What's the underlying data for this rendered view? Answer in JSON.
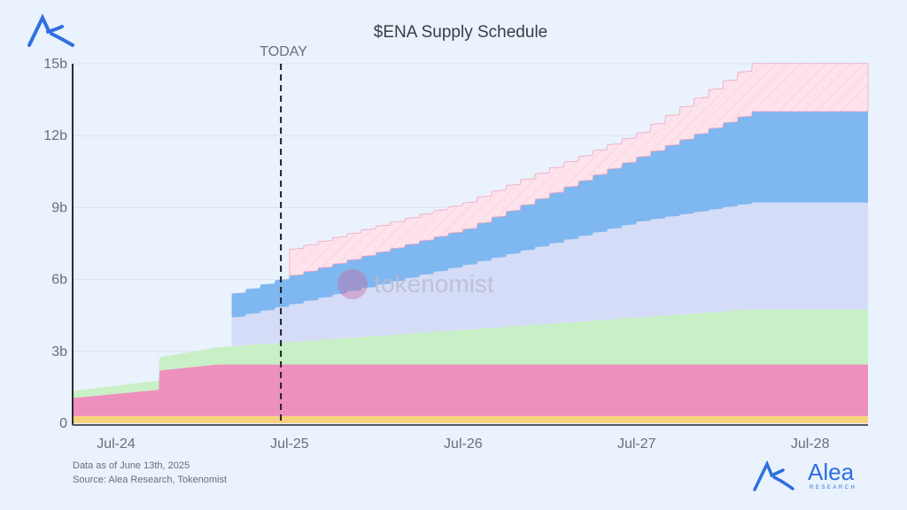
{
  "chart_data": {
    "type": "area",
    "stacked": true,
    "title": "$ENA Supply Schedule",
    "xlabel": "",
    "ylabel": "",
    "x_unit": "months since Apr-24",
    "xlim": [
      0,
      55
    ],
    "ylim": [
      0,
      15
    ],
    "y_ticks": [
      {
        "v": 0,
        "label": "0"
      },
      {
        "v": 3,
        "label": "3b"
      },
      {
        "v": 6,
        "label": "6b"
      },
      {
        "v": 9,
        "label": "9b"
      },
      {
        "v": 12,
        "label": "12b"
      },
      {
        "v": 15,
        "label": "15b"
      }
    ],
    "x_ticks": [
      {
        "v": 3,
        "label": "Jul-24"
      },
      {
        "v": 15,
        "label": "Jul-25"
      },
      {
        "v": 27,
        "label": "Jul-26"
      },
      {
        "v": 39,
        "label": "Jul-27"
      },
      {
        "v": 51,
        "label": "Jul-28"
      }
    ],
    "grid": true,
    "legend": "none",
    "annotation": {
      "label": "TODAY",
      "x": 14.4
    },
    "series": [
      {
        "color": "#f8d27e",
        "stepped": false,
        "points": [
          [
            0,
            0.3
          ],
          [
            55,
            0.3
          ]
        ]
      },
      {
        "color": "#ee90bd",
        "stepped": false,
        "points": [
          [
            0,
            0.75
          ],
          [
            6,
            1.1
          ],
          [
            6,
            1.9
          ],
          [
            10,
            2.15
          ],
          [
            55,
            2.15
          ]
        ]
      },
      {
        "color": "#c9efc6",
        "stepped": false,
        "points": [
          [
            0,
            0.3
          ],
          [
            6,
            0.38
          ],
          [
            6,
            0.55
          ],
          [
            47,
            2.3
          ],
          [
            55,
            2.3
          ]
        ]
      },
      {
        "color": "#d5dcf7",
        "stepped": true,
        "points": [
          [
            11,
            1.2
          ],
          [
            27,
            2.7
          ],
          [
            39,
            4.0
          ],
          [
            47,
            4.46
          ],
          [
            55,
            4.46
          ]
        ]
      },
      {
        "color": "#7fb7f0",
        "stepped": true,
        "points": [
          [
            11,
            1.0
          ],
          [
            15,
            1.2
          ],
          [
            27,
            1.5
          ],
          [
            39,
            2.7
          ],
          [
            47,
            3.8
          ],
          [
            55,
            3.8
          ]
        ]
      },
      {
        "color": "#fde3ec",
        "stepped": true,
        "hatched": true,
        "points": [
          [
            15,
            1.1
          ],
          [
            27,
            1.1
          ],
          [
            39,
            1.0
          ],
          [
            47,
            2.0
          ],
          [
            55,
            2.0
          ]
        ]
      }
    ]
  },
  "watermark": "tokenomist",
  "footer": {
    "line1": "Data as of June 13th, 2025",
    "line2": "Source: Alea Research, Tokenomist"
  },
  "brand": {
    "name": "Alea",
    "sub": "RESEARCH"
  }
}
